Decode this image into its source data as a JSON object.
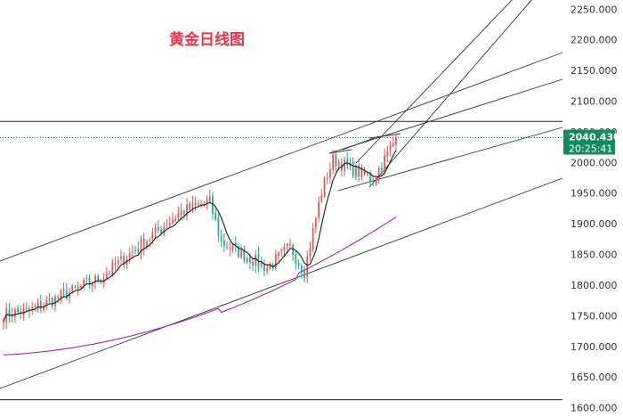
{
  "chart_data": {
    "type": "candlestick",
    "title": "黄金日线图",
    "y_axis": {
      "ylim": [
        1595,
        2265
      ],
      "ticks": [
        1600,
        1650,
        1700,
        1750,
        1800,
        1850,
        1900,
        1950,
        2000,
        2050,
        2100,
        2150,
        2200,
        2250
      ],
      "tick_labels": [
        "1600.000",
        "1650.000",
        "1700.000",
        "1750.000",
        "1800.000",
        "1850.000",
        "1900.000",
        "1950.000",
        "2000.000",
        "2050.000",
        "2100.000",
        "2150.000",
        "2200.000",
        "2250.000"
      ]
    },
    "current_price": {
      "value": 2040.43,
      "price_label": "2040.430",
      "countdown_label": "20:25:41"
    },
    "horizontal_lines": [
      2067,
      1613
    ],
    "colors": {
      "up": "#ef5350",
      "down": "#26a69a",
      "ma_fast": "#1a1a1a",
      "ma_slow": "#9c27b0",
      "title": "#e8334a",
      "badge": "#138a5f",
      "trendline": "#333333"
    },
    "segments": [
      {
        "bars": 10,
        "from": 1752,
        "to": 1758
      },
      {
        "bars": 25,
        "from": 1758,
        "to": 1812
      },
      {
        "bars": 28,
        "from": 1812,
        "to": 1920
      },
      {
        "bars": 10,
        "from": 1920,
        "to": 1935
      },
      {
        "bars": 4,
        "from": 1935,
        "to": 1870
      },
      {
        "bars": 16,
        "from": 1870,
        "to": 1828
      },
      {
        "bars": 8,
        "from": 1828,
        "to": 1862
      },
      {
        "bars": 5,
        "from": 1862,
        "to": 1822
      },
      {
        "bars": 6,
        "from": 1822,
        "to": 1952
      },
      {
        "bars": 4,
        "from": 1952,
        "to": 2005
      },
      {
        "bars": 14,
        "from": 2005,
        "to": 1972
      },
      {
        "bars": 8,
        "from": 1972,
        "to": 2040
      }
    ]
  }
}
